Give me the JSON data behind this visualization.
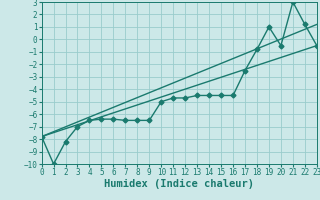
{
  "xlabel": "Humidex (Indice chaleur)",
  "xlim": [
    0,
    23
  ],
  "ylim": [
    -10,
    3
  ],
  "xticks": [
    0,
    1,
    2,
    3,
    4,
    5,
    6,
    7,
    8,
    9,
    10,
    11,
    12,
    13,
    14,
    15,
    16,
    17,
    18,
    19,
    20,
    21,
    22,
    23
  ],
  "yticks": [
    3,
    2,
    1,
    0,
    -1,
    -2,
    -3,
    -4,
    -5,
    -6,
    -7,
    -8,
    -9,
    -10
  ],
  "bg_color": "#cce8e8",
  "grid_color": "#99cccc",
  "line_color": "#1a7a6e",
  "line1_x": [
    0,
    1,
    2,
    3,
    4,
    5,
    6,
    7,
    8,
    9,
    10,
    11,
    12,
    13,
    14,
    15,
    16,
    17,
    18,
    19,
    20,
    21,
    22,
    23
  ],
  "line1_y": [
    -7.8,
    -10.0,
    -8.2,
    -7.0,
    -6.5,
    -6.4,
    -6.4,
    -6.5,
    -6.5,
    -6.5,
    -5.0,
    -4.7,
    -4.7,
    -4.5,
    -4.5,
    -4.5,
    -4.5,
    -2.5,
    -0.8,
    1.0,
    -0.5,
    3.0,
    1.2,
    -0.5
  ],
  "line2_x": [
    0,
    23
  ],
  "line2_y": [
    -7.8,
    -0.5
  ],
  "line3_x": [
    0,
    23
  ],
  "line3_y": [
    -7.8,
    1.2
  ],
  "marker": "D",
  "marker_size": 2.5,
  "linewidth": 1.0,
  "tick_fontsize": 5.5,
  "label_fontsize": 7.5
}
